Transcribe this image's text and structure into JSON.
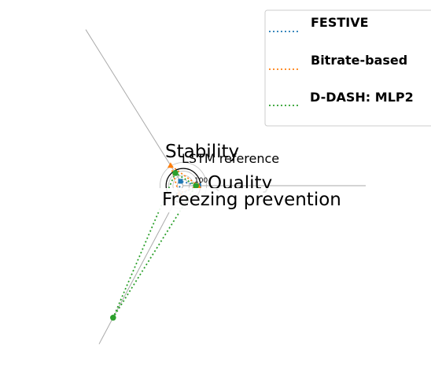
{
  "chart_data": {
    "type": "radar",
    "axes": [
      "Quality",
      "Stability",
      "Freezing prevention"
    ],
    "reference_label": "LSTM reference",
    "reference_values": [
      1.0,
      1.0,
      1.0
    ],
    "tick_label": "100",
    "legend_position": "top-right",
    "series": [
      {
        "name": "FESTIVE",
        "color": "#1f77b4",
        "values": [
          1.04,
          0.35,
          0.7
        ],
        "linestyle": "dotted"
      },
      {
        "name": "Bitrate-based",
        "color": "#ff7f0e",
        "values": [
          1.0,
          1.6,
          0.6
        ],
        "linestyle": "dotted"
      },
      {
        "name": "D-DASH: MLP2",
        "color": "#2ca02c",
        "values": [
          0.85,
          1.0,
          10.0
        ],
        "linestyle": "dotted"
      }
    ]
  }
}
